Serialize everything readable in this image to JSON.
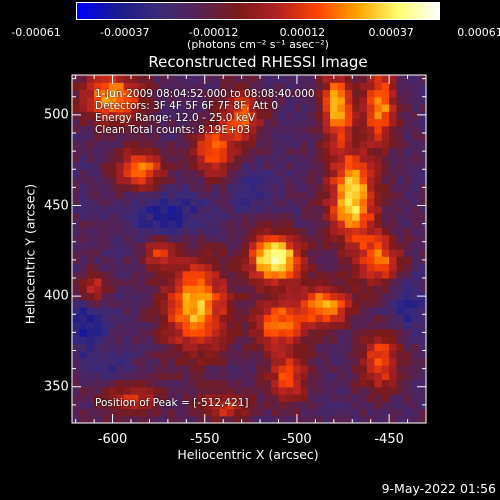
{
  "colors": {
    "colormap": [
      "#0000ff",
      "#1a1a90",
      "#3a2a7a",
      "#552255",
      "#7a1a1a",
      "#b22222",
      "#ff4500",
      "#ffa500",
      "#ffff70",
      "#ffffff"
    ],
    "axes": "#ffffff",
    "background": "#000000"
  },
  "colorbar": {
    "ticks": [
      "-0.00061",
      "-0.00037",
      "-0.00012",
      "0.00012",
      "0.00037",
      "0.00061"
    ],
    "units": "(photons cm⁻² s⁻¹ asec⁻²)"
  },
  "info": {
    "line1": "1-Jun-2009 08:04:52.000 to 08:08:40.000",
    "line2": "Detectors: 3F 4F 5F 6F 7F 8F, Att 0",
    "line3": "Energy Range: 12.0 - 25.0 keV",
    "line4": "Clean    Total counts: 8.19E+03",
    "peak": "Position of Peak = [-512,421]"
  },
  "timestamp": "9-May-2022 01:56",
  "chart_data": {
    "type": "heatmap",
    "title": "Reconstructed RHESSI Image",
    "xlabel": "Heliocentric X (arcsec)",
    "ylabel": "Heliocentric Y (arcsec)",
    "xlim": [
      -622,
      -430
    ],
    "ylim": [
      330,
      522
    ],
    "xticks": [
      "-600",
      "-550",
      "-500",
      "-450"
    ],
    "yticks": [
      "350",
      "400",
      "450",
      "500"
    ],
    "xtick_values": [
      -600,
      -550,
      -500,
      -450
    ],
    "ytick_values": [
      350,
      400,
      450,
      500
    ],
    "zlim": [
      -0.00061,
      0.00061
    ],
    "peak_position": [
      -512,
      421
    ],
    "sources": [
      {
        "x": -512,
        "y": 421,
        "sx": 10,
        "sy": 9,
        "amp": 1.0
      },
      {
        "x": -470,
        "y": 455,
        "sx": 9,
        "sy": 18,
        "amp": 0.85
      },
      {
        "x": -478,
        "y": 505,
        "sx": 6,
        "sy": 14,
        "amp": 0.75
      },
      {
        "x": -455,
        "y": 505,
        "sx": 6,
        "sy": 14,
        "amp": 0.7
      },
      {
        "x": -600,
        "y": 510,
        "sx": 12,
        "sy": 10,
        "amp": 0.7
      },
      {
        "x": -585,
        "y": 470,
        "sx": 9,
        "sy": 8,
        "amp": 0.65
      },
      {
        "x": -545,
        "y": 480,
        "sx": 8,
        "sy": 10,
        "amp": 0.6
      },
      {
        "x": -530,
        "y": 500,
        "sx": 8,
        "sy": 10,
        "amp": 0.55
      },
      {
        "x": -555,
        "y": 395,
        "sx": 12,
        "sy": 18,
        "amp": 0.75
      },
      {
        "x": -510,
        "y": 385,
        "sx": 10,
        "sy": 10,
        "amp": 0.6
      },
      {
        "x": -485,
        "y": 395,
        "sx": 10,
        "sy": 8,
        "amp": 0.7
      },
      {
        "x": -455,
        "y": 420,
        "sx": 8,
        "sy": 10,
        "amp": 0.6
      },
      {
        "x": -575,
        "y": 425,
        "sx": 6,
        "sy": 6,
        "amp": 0.5
      },
      {
        "x": -610,
        "y": 405,
        "sx": 6,
        "sy": 6,
        "amp": 0.45
      },
      {
        "x": -505,
        "y": 355,
        "sx": 8,
        "sy": 10,
        "amp": 0.5
      },
      {
        "x": -455,
        "y": 365,
        "sx": 8,
        "sy": 12,
        "amp": 0.55
      },
      {
        "x": -540,
        "y": 340,
        "sx": 10,
        "sy": 6,
        "amp": 0.45
      },
      {
        "x": -590,
        "y": 345,
        "sx": 12,
        "sy": 8,
        "amp": 0.4
      }
    ],
    "negative_regions": [
      {
        "x": -570,
        "y": 445,
        "sx": 14,
        "sy": 10,
        "amp": 0.8
      },
      {
        "x": -615,
        "y": 385,
        "sx": 8,
        "sy": 12,
        "amp": 0.8
      },
      {
        "x": -440,
        "y": 395,
        "sx": 8,
        "sy": 10,
        "amp": 0.7
      },
      {
        "x": -525,
        "y": 460,
        "sx": 8,
        "sy": 8,
        "amp": 0.6
      },
      {
        "x": -600,
        "y": 360,
        "sx": 8,
        "sy": 8,
        "amp": 0.5
      }
    ]
  }
}
